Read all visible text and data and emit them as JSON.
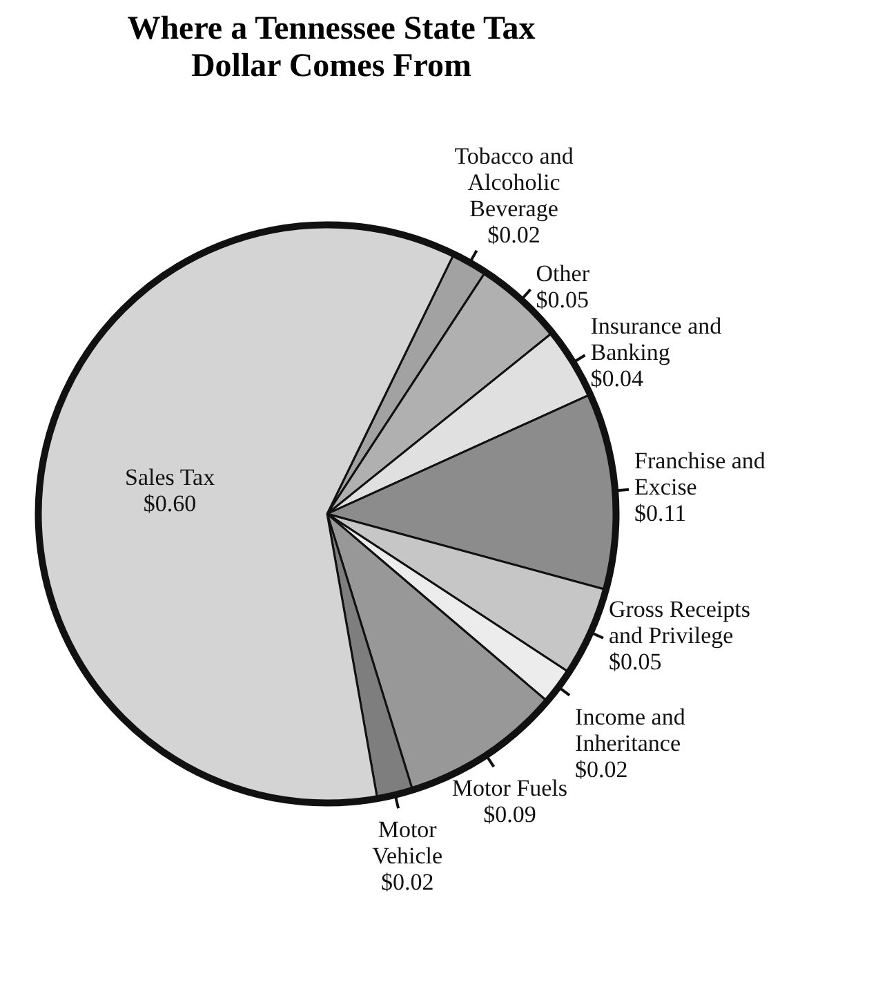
{
  "chart_data": {
    "type": "pie",
    "title": "Where a Tennessee State Tax Dollar Comes From",
    "categories": [
      "Tobacco and Alcoholic Beverage",
      "Other",
      "Insurance and Banking",
      "Franchise and Excise",
      "Gross Receipts and Privilege",
      "Income and Inheritance",
      "Motor Fuels",
      "Motor Vehicle",
      "Sales Tax"
    ],
    "values": [
      0.02,
      0.05,
      0.04,
      0.11,
      0.05,
      0.02,
      0.09,
      0.02,
      0.6
    ],
    "colors": [
      "#a2a2a2",
      "#b0b0b0",
      "#e0e0e0",
      "#8c8c8c",
      "#c6c6c6",
      "#ececec",
      "#989898",
      "#7e7e7e",
      "#d4d4d4"
    ],
    "value_labels": [
      "$0.02",
      "$0.05",
      "$0.04",
      "$0.11",
      "$0.05",
      "$0.02",
      "$0.09",
      "$0.02",
      "$0.60"
    ],
    "legend": false
  }
}
